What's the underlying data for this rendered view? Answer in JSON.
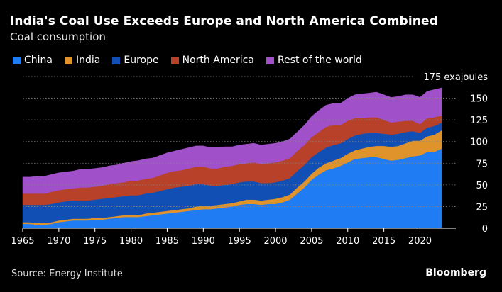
{
  "header": {
    "title": "India's Coal Use Exceeds Europe and North America Combined",
    "subtitle": "Coal consumption"
  },
  "footer": {
    "source": "Source: Energy Institute",
    "logo": "Bloomberg"
  },
  "colors": {
    "background": "#000000",
    "china": "#1f7cf3",
    "india": "#e0932b",
    "europe": "#114fb4",
    "north_america": "#b8412a",
    "rest_of_world": "#a050c8"
  },
  "chart_data": {
    "type": "area",
    "stacked": true,
    "title": "India's Coal Use Exceeds Europe and North America Combined",
    "subtitle": "Coal consumption",
    "unit_label": "175 exajoules",
    "xlabel": "",
    "ylabel": "",
    "xlim": [
      1965,
      2023
    ],
    "ylim": [
      0,
      175
    ],
    "x_ticks": [
      "1965",
      "1970",
      "1975",
      "1980",
      "1985",
      "1990",
      "1995",
      "2000",
      "2005",
      "2010",
      "2015",
      "2020"
    ],
    "y_ticks": [
      "0",
      "25",
      "50",
      "75",
      "100",
      "125",
      "150"
    ],
    "grid": "horizontal dotted",
    "legend_position": "top-left",
    "x": [
      1965,
      1966,
      1967,
      1968,
      1969,
      1970,
      1971,
      1972,
      1973,
      1974,
      1975,
      1976,
      1977,
      1978,
      1979,
      1980,
      1981,
      1982,
      1983,
      1984,
      1985,
      1986,
      1987,
      1988,
      1989,
      1990,
      1991,
      1992,
      1993,
      1994,
      1995,
      1996,
      1997,
      1998,
      1999,
      2000,
      2001,
      2002,
      2003,
      2004,
      2005,
      2006,
      2007,
      2008,
      2009,
      2010,
      2011,
      2012,
      2013,
      2014,
      2015,
      2016,
      2017,
      2018,
      2019,
      2020,
      2021,
      2022,
      2023
    ],
    "series": [
      {
        "name": "China",
        "color": "#1f7cf3",
        "values": [
          5,
          5,
          4,
          4,
          5,
          7,
          8,
          9,
          9,
          9,
          10,
          10,
          11,
          12,
          13,
          13,
          13,
          14,
          15,
          16,
          17,
          18,
          19,
          20,
          21,
          22,
          22,
          23,
          24,
          25,
          27,
          28,
          28,
          27,
          28,
          28,
          30,
          33,
          40,
          47,
          56,
          62,
          67,
          69,
          72,
          76,
          80,
          81,
          82,
          82,
          80,
          78,
          79,
          81,
          83,
          84,
          88,
          88,
          92
        ]
      },
      {
        "name": "India",
        "color": "#e0932b",
        "values": [
          2,
          2,
          2,
          2,
          2,
          2,
          2,
          2,
          2,
          2,
          2,
          2,
          2,
          2,
          2,
          2,
          2,
          3,
          3,
          3,
          3,
          3,
          3,
          3,
          4,
          4,
          4,
          4,
          4,
          4,
          4,
          5,
          5,
          5,
          5,
          6,
          6,
          6,
          7,
          7,
          7,
          8,
          8,
          9,
          9,
          10,
          10,
          11,
          12,
          13,
          15,
          16,
          16,
          17,
          18,
          17,
          18,
          20,
          21
        ]
      },
      {
        "name": "Europe",
        "color": "#114fb4",
        "values": [
          20,
          20,
          21,
          21,
          21,
          21,
          21,
          21,
          21,
          21,
          21,
          22,
          22,
          22,
          22,
          23,
          23,
          23,
          23,
          24,
          25,
          26,
          26,
          26,
          26,
          25,
          23,
          22,
          22,
          22,
          22,
          21,
          21,
          20,
          19,
          19,
          19,
          19,
          19,
          19,
          19,
          18,
          18,
          18,
          17,
          17,
          17,
          17,
          16,
          15,
          14,
          14,
          14,
          13,
          11,
          9,
          10,
          10,
          9
        ]
      },
      {
        "name": "North America",
        "color": "#b8412a",
        "values": [
          13,
          13,
          13,
          13,
          14,
          14,
          14,
          14,
          15,
          15,
          15,
          15,
          16,
          16,
          16,
          17,
          17,
          17,
          17,
          18,
          19,
          19,
          19,
          20,
          20,
          20,
          20,
          20,
          21,
          21,
          21,
          21,
          22,
          22,
          23,
          23,
          23,
          23,
          23,
          23,
          23,
          23,
          24,
          23,
          21,
          21,
          20,
          18,
          18,
          18,
          16,
          14,
          14,
          13,
          12,
          10,
          11,
          10,
          8
        ]
      },
      {
        "name": "Rest of the world",
        "color": "#a050c8",
        "values": [
          19,
          19,
          20,
          20,
          20,
          20,
          20,
          20,
          21,
          21,
          21,
          21,
          21,
          21,
          22,
          22,
          23,
          23,
          23,
          23,
          23,
          23,
          24,
          24,
          24,
          24,
          24,
          24,
          23,
          22,
          22,
          22,
          22,
          22,
          22,
          22,
          22,
          22,
          22,
          23,
          24,
          25,
          25,
          25,
          25,
          26,
          27,
          28,
          28,
          29,
          29,
          29,
          29,
          30,
          30,
          31,
          31,
          32,
          32
        ]
      }
    ]
  }
}
